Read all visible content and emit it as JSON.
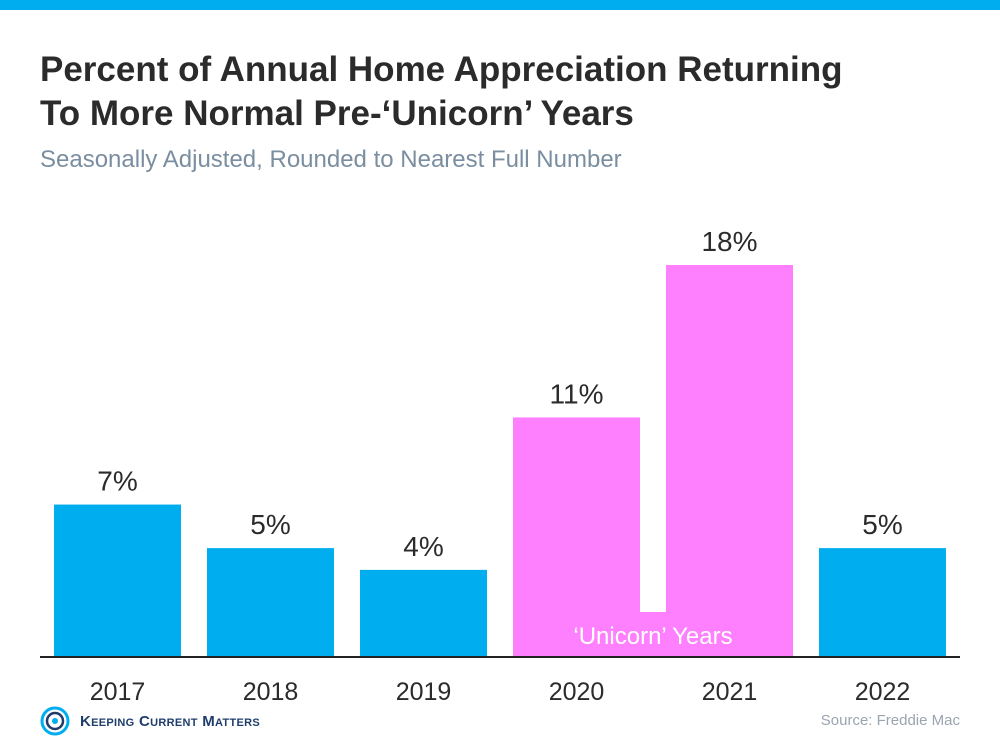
{
  "header": {
    "title_line1": "Percent of Annual Home Appreciation Returning",
    "title_line2": "To More Normal Pre-‘Unicorn’ Years",
    "subtitle": "Seasonally Adjusted, Rounded to Nearest Full Number"
  },
  "chart_data": {
    "type": "bar",
    "categories": [
      "2017",
      "2018",
      "2019",
      "2020",
      "2021",
      "2022"
    ],
    "values": [
      7,
      5,
      4,
      11,
      18,
      5
    ],
    "value_labels": [
      "7%",
      "5%",
      "4%",
      "11%",
      "18%",
      "5%"
    ],
    "highlight": [
      false,
      false,
      false,
      true,
      true,
      false
    ],
    "highlight_label": "‘Unicorn’ Years",
    "ylim": [
      0,
      18
    ],
    "grid": false,
    "colors": {
      "normal": "#00adef",
      "highlight": "#ff80ff",
      "axis": "#222222",
      "text": "#2b2b2b"
    }
  },
  "footer": {
    "logo_text": "Keeping Current Matters",
    "logo_icon": "kcm-swirl-icon",
    "source": "Source: Freddie Mac"
  }
}
